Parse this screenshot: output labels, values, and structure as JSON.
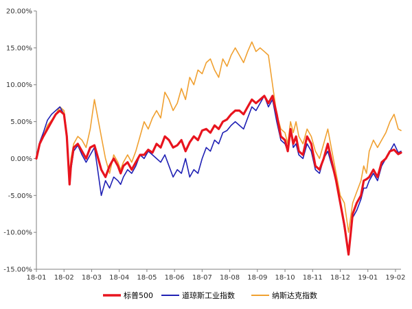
{
  "chart_data": {
    "type": "line",
    "x_ticks": [
      "18-01",
      "18-02",
      "18-03",
      "18-04",
      "18-05",
      "18-06",
      "18-07",
      "18-08",
      "18-09",
      "18-10",
      "18-11",
      "18-12",
      "19-01",
      "19-02"
    ],
    "y_ticks": [
      "20.00%",
      "15.00%",
      "10.00%",
      "5.00%",
      "0.00%",
      "-5.00%",
      "-10.00%",
      "-15.00%"
    ],
    "ylim": [
      -15,
      20
    ],
    "xlim": [
      0,
      13.2
    ],
    "grid": false,
    "legend_position": "bottom",
    "series": [
      {
        "name": "标普500",
        "color": "#e8141e",
        "x": [
          0,
          0.12,
          0.25,
          0.4,
          0.55,
          0.7,
          0.85,
          1.0,
          1.1,
          1.2,
          1.25,
          1.35,
          1.5,
          1.65,
          1.8,
          1.95,
          2.1,
          2.2,
          2.35,
          2.5,
          2.65,
          2.8,
          2.95,
          3.05,
          3.15,
          3.3,
          3.45,
          3.6,
          3.75,
          3.9,
          4.05,
          4.2,
          4.35,
          4.5,
          4.65,
          4.8,
          4.95,
          5.1,
          5.25,
          5.4,
          5.55,
          5.7,
          5.85,
          6.0,
          6.15,
          6.3,
          6.45,
          6.6,
          6.75,
          6.9,
          7.05,
          7.2,
          7.35,
          7.5,
          7.65,
          7.8,
          7.95,
          8.1,
          8.25,
          8.4,
          8.55,
          8.7,
          8.85,
          9.0,
          9.1,
          9.2,
          9.3,
          9.4,
          9.5,
          9.65,
          9.8,
          9.95,
          10.1,
          10.25,
          10.4,
          10.55,
          10.7,
          10.85,
          11.0,
          11.15,
          11.3,
          11.45,
          11.6,
          11.75,
          11.85,
          11.95,
          12.05,
          12.2,
          12.35,
          12.5,
          12.65,
          12.8,
          12.95,
          13.1,
          13.2
        ],
        "y": [
          0,
          2,
          3,
          4,
          5,
          6,
          6.5,
          6,
          3,
          -3.5,
          -1,
          1.5,
          2,
          1,
          0,
          1.5,
          1.8,
          0.5,
          -1.5,
          -2.5,
          -1,
          0,
          -1,
          -2,
          -1,
          -0.5,
          -1.5,
          -0.5,
          0.5,
          0.5,
          1.2,
          0.8,
          2,
          1.5,
          3,
          2.5,
          1.5,
          1.8,
          2.5,
          1,
          2.2,
          3,
          2.5,
          3.8,
          4,
          3.5,
          4.5,
          4,
          5,
          5.3,
          6,
          6.5,
          6.5,
          6,
          7,
          8,
          7.5,
          8,
          8.5,
          7.5,
          8.5,
          6,
          3,
          2.5,
          1,
          4,
          2,
          3,
          1,
          0.5,
          3,
          2,
          -1,
          -1.5,
          0,
          2,
          -0.5,
          -3,
          -6,
          -9,
          -13,
          -7.5,
          -6,
          -5,
          -3,
          -2.8,
          -2.5,
          -1.5,
          -2.5,
          -0.5,
          0,
          1,
          1.2,
          0.6,
          0.8
        ]
      },
      {
        "name": "道琼斯工业指数",
        "color": "#1f20b4",
        "x": [
          0,
          0.12,
          0.25,
          0.4,
          0.55,
          0.7,
          0.85,
          1.0,
          1.1,
          1.2,
          1.25,
          1.35,
          1.5,
          1.65,
          1.8,
          1.95,
          2.1,
          2.2,
          2.35,
          2.5,
          2.65,
          2.8,
          2.95,
          3.05,
          3.15,
          3.3,
          3.45,
          3.6,
          3.75,
          3.9,
          4.05,
          4.2,
          4.35,
          4.5,
          4.65,
          4.8,
          4.95,
          5.1,
          5.25,
          5.4,
          5.55,
          5.7,
          5.85,
          6.0,
          6.15,
          6.3,
          6.45,
          6.6,
          6.75,
          6.9,
          7.05,
          7.2,
          7.35,
          7.5,
          7.65,
          7.8,
          7.95,
          8.1,
          8.25,
          8.4,
          8.55,
          8.7,
          8.85,
          9.0,
          9.1,
          9.2,
          9.3,
          9.4,
          9.5,
          9.65,
          9.8,
          9.95,
          10.1,
          10.25,
          10.4,
          10.55,
          10.7,
          10.85,
          11.0,
          11.15,
          11.3,
          11.45,
          11.6,
          11.75,
          11.85,
          11.95,
          12.05,
          12.2,
          12.35,
          12.5,
          12.65,
          12.8,
          12.95,
          13.1,
          13.2
        ],
        "y": [
          0,
          2.2,
          3.5,
          5.2,
          6,
          6.5,
          7,
          6,
          3,
          -3,
          -1.5,
          1,
          1.8,
          0.5,
          -0.5,
          0.5,
          1.5,
          -1,
          -5,
          -3,
          -4,
          -2.5,
          -3,
          -3.5,
          -2.5,
          -1.5,
          -2,
          -1,
          0.5,
          0,
          1,
          0.5,
          0,
          -0.5,
          0.5,
          -1,
          -2.5,
          -1.5,
          -2,
          0,
          -2.5,
          -1.5,
          -2,
          0,
          1.5,
          1,
          2.5,
          2,
          3.5,
          3.8,
          4.5,
          5,
          4.5,
          4,
          5.5,
          7,
          6.5,
          7.5,
          8.5,
          7,
          8,
          5,
          2.5,
          2,
          1,
          4,
          1.5,
          2,
          0.5,
          0,
          2,
          1,
          -1.5,
          -2,
          0,
          1,
          -1,
          -3,
          -6,
          -9.5,
          -12.5,
          -8,
          -7,
          -5.5,
          -4,
          -4,
          -3,
          -2,
          -3,
          -1,
          0,
          1,
          2,
          0.8,
          1
        ]
      },
      {
        "name": "纳斯达克指数",
        "color": "#f0a030",
        "x": [
          0,
          0.12,
          0.25,
          0.4,
          0.55,
          0.7,
          0.85,
          1.0,
          1.1,
          1.2,
          1.25,
          1.35,
          1.5,
          1.65,
          1.8,
          1.95,
          2.1,
          2.2,
          2.35,
          2.5,
          2.65,
          2.8,
          2.95,
          3.05,
          3.15,
          3.3,
          3.45,
          3.6,
          3.75,
          3.9,
          4.05,
          4.2,
          4.35,
          4.5,
          4.65,
          4.8,
          4.95,
          5.1,
          5.25,
          5.4,
          5.55,
          5.7,
          5.85,
          6.0,
          6.15,
          6.3,
          6.45,
          6.6,
          6.75,
          6.9,
          7.05,
          7.2,
          7.35,
          7.5,
          7.65,
          7.8,
          7.95,
          8.1,
          8.25,
          8.4,
          8.55,
          8.7,
          8.85,
          9.0,
          9.1,
          9.2,
          9.3,
          9.4,
          9.5,
          9.65,
          9.8,
          9.95,
          10.1,
          10.25,
          10.4,
          10.55,
          10.7,
          10.85,
          11.0,
          11.15,
          11.3,
          11.45,
          11.6,
          11.75,
          11.85,
          11.95,
          12.05,
          12.2,
          12.35,
          12.5,
          12.65,
          12.8,
          12.95,
          13.1,
          13.2
        ],
        "y": [
          0,
          2,
          3,
          4.5,
          5.2,
          6,
          7,
          6.5,
          3.5,
          -2.5,
          0,
          2,
          3,
          2.5,
          1.5,
          4,
          8,
          6,
          3,
          0,
          -2,
          0.5,
          -0.5,
          -1.5,
          -0.5,
          0.5,
          -0.5,
          1,
          3,
          5,
          4,
          5.5,
          6.5,
          5.5,
          9,
          8,
          6.5,
          7.5,
          9.5,
          8,
          11,
          10,
          12,
          11.5,
          13,
          13.5,
          12,
          11,
          13.5,
          12.5,
          14,
          15,
          14,
          13,
          14.5,
          15.8,
          14.5,
          15,
          14.5,
          14,
          10,
          6,
          4,
          3.5,
          2,
          5,
          3.5,
          5,
          3,
          2,
          4,
          3,
          1,
          0,
          2,
          4,
          1,
          -2,
          -5,
          -6,
          -10,
          -6,
          -4.5,
          -3,
          -1,
          -2,
          1,
          2.5,
          1.5,
          2.5,
          3.5,
          5,
          6,
          4,
          3.8
        ]
      }
    ]
  }
}
